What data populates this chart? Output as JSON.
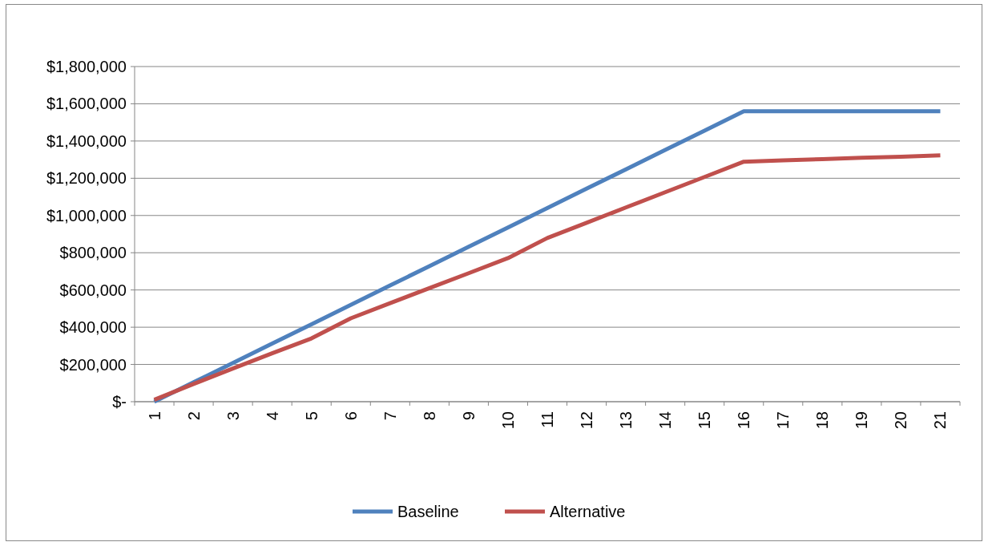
{
  "chart_data": {
    "type": "line",
    "categories": [
      "1",
      "2",
      "3",
      "4",
      "5",
      "6",
      "7",
      "8",
      "9",
      "10",
      "11",
      "12",
      "13",
      "14",
      "15",
      "16",
      "17",
      "18",
      "19",
      "20",
      "21"
    ],
    "series": [
      {
        "name": "Baseline",
        "color": "#4f81bd",
        "values": [
          0,
          104000,
          208000,
          312000,
          416000,
          520000,
          624000,
          728000,
          832000,
          936000,
          1040000,
          1144000,
          1248000,
          1352000,
          1456000,
          1560000,
          1560000,
          1560000,
          1560000,
          1560000,
          1560000
        ]
      },
      {
        "name": "Alternative",
        "color": "#c0504d",
        "values": [
          10000,
          95000,
          178000,
          260000,
          340000,
          448000,
          529000,
          610000,
          690000,
          771000,
          879000,
          961000,
          1043000,
          1125000,
          1207000,
          1289000,
          1296000,
          1303000,
          1310000,
          1316000,
          1323000
        ]
      }
    ],
    "ylim": [
      0,
      1800000
    ],
    "yticks": [
      {
        "value": 0,
        "label": "$-"
      },
      {
        "value": 200000,
        "label": "$200,000"
      },
      {
        "value": 400000,
        "label": "$400,000"
      },
      {
        "value": 600000,
        "label": "$600,000"
      },
      {
        "value": 800000,
        "label": "$800,000"
      },
      {
        "value": 1000000,
        "label": "$1,000,000"
      },
      {
        "value": 1200000,
        "label": "$1,200,000"
      },
      {
        "value": 1400000,
        "label": "$1,400,000"
      },
      {
        "value": 1600000,
        "label": "$1,600,000"
      },
      {
        "value": 1800000,
        "label": "$1,800,000"
      }
    ],
    "grid": "y",
    "legend": "bottom",
    "marker": "none",
    "line_style": "solid"
  }
}
